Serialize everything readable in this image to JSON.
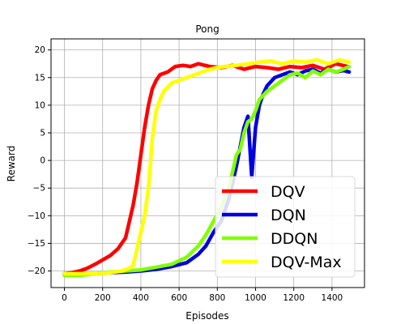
{
  "chart_data": {
    "type": "line",
    "title": "Pong",
    "xlabel": "Episodes",
    "ylabel": "Reward",
    "xlim": [
      -70,
      1570
    ],
    "ylim": [
      -23,
      22
    ],
    "xticks": [
      0,
      200,
      400,
      600,
      800,
      1000,
      1200,
      1400
    ],
    "yticks": [
      -20,
      -15,
      -10,
      -5,
      0,
      5,
      10,
      15,
      20
    ],
    "grid": true,
    "legend_position": "lower-right",
    "series": [
      {
        "name": "DQV",
        "color": "#ff0000",
        "x": [
          0,
          40,
          80,
          120,
          160,
          200,
          240,
          280,
          320,
          340,
          360,
          380,
          400,
          420,
          440,
          460,
          480,
          500,
          540,
          580,
          620,
          660,
          700,
          760,
          820,
          880,
          940,
          1000,
          1060,
          1120,
          1180,
          1240,
          1300,
          1360,
          1420,
          1480
        ],
        "y": [
          -20.5,
          -20.3,
          -20,
          -19.5,
          -18.8,
          -18,
          -17.2,
          -16,
          -14,
          -11,
          -8,
          -4,
          1,
          6,
          10,
          13,
          14.5,
          15.5,
          16,
          17,
          17.2,
          17,
          17.5,
          17,
          16.8,
          17.2,
          16.5,
          17,
          16.8,
          16.5,
          17,
          16.8,
          17.2,
          16.5,
          17.5,
          17
        ]
      },
      {
        "name": "DQN",
        "color": "#0000e0",
        "x": [
          0,
          80,
          160,
          240,
          320,
          400,
          480,
          560,
          640,
          700,
          740,
          780,
          820,
          860,
          900,
          940,
          960,
          980,
          1000,
          1020,
          1040,
          1060,
          1100,
          1140,
          1180,
          1220,
          1260,
          1300,
          1340,
          1380,
          1420,
          1460,
          1490
        ],
        "y": [
          -20.5,
          -20.5,
          -20.5,
          -20.3,
          -20.2,
          -20,
          -19.7,
          -19.2,
          -18.5,
          -17,
          -15.5,
          -13,
          -11,
          -7,
          -1,
          6,
          8,
          -3,
          6,
          10,
          12,
          13.5,
          15,
          15.5,
          16,
          15.5,
          16.2,
          16.5,
          15.8,
          16.5,
          16,
          16.3,
          16
        ]
      },
      {
        "name": "DDQN",
        "color": "#80ff00",
        "x": [
          0,
          80,
          160,
          240,
          320,
          400,
          480,
          560,
          640,
          700,
          740,
          780,
          820,
          860,
          880,
          900,
          920,
          940,
          960,
          980,
          1000,
          1020,
          1060,
          1100,
          1140,
          1180,
          1220,
          1260,
          1300,
          1340,
          1380,
          1420,
          1460,
          1490
        ],
        "y": [
          -20.8,
          -20.8,
          -20.5,
          -20.2,
          -20,
          -19.8,
          -19.3,
          -18.8,
          -17.5,
          -15.5,
          -13.5,
          -11,
          -8.5,
          -5,
          -2,
          1,
          2,
          5,
          7,
          7.5,
          9,
          11,
          12.5,
          13.5,
          14.5,
          15.5,
          15.8,
          15,
          16.2,
          15.5,
          16.5,
          16,
          16.5,
          17
        ]
      },
      {
        "name": "DQV-Max",
        "color": "#ffff00",
        "x": [
          0,
          80,
          160,
          240,
          300,
          340,
          360,
          380,
          400,
          420,
          440,
          460,
          480,
          500,
          520,
          560,
          600,
          640,
          680,
          720,
          760,
          800,
          840,
          900,
          960,
          1020,
          1080,
          1140,
          1200,
          1260,
          1320,
          1380,
          1440,
          1490
        ],
        "y": [
          -20.5,
          -20.5,
          -20.5,
          -20.3,
          -20,
          -19.5,
          -19,
          -16,
          -13,
          -10,
          -5,
          4,
          9,
          11,
          12.5,
          14,
          14.5,
          15,
          15.5,
          16,
          16.5,
          16.8,
          17,
          17.2,
          17.5,
          17.8,
          18,
          17.5,
          18,
          17.8,
          18.2,
          17.5,
          18.2,
          17.8
        ]
      }
    ]
  }
}
